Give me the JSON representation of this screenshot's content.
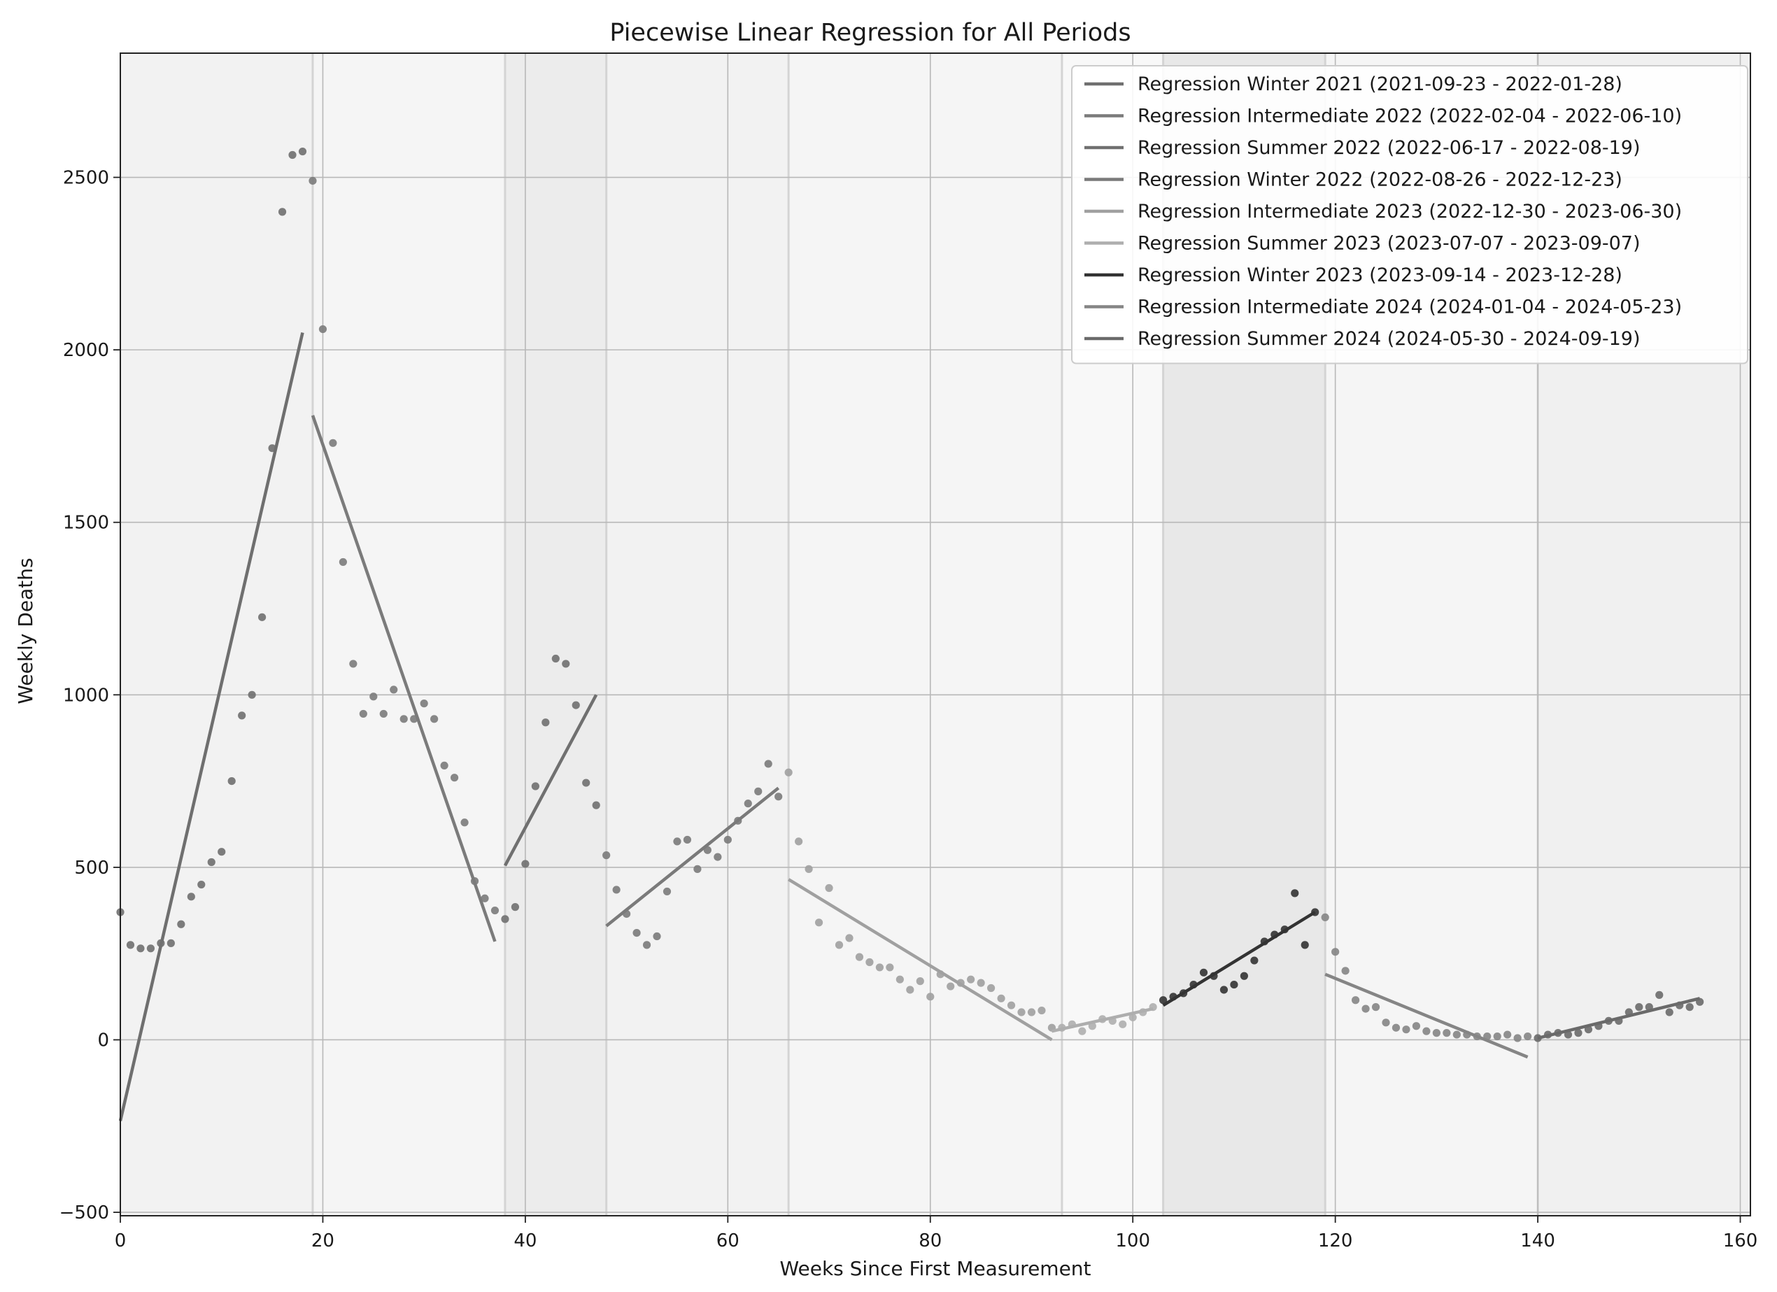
{
  "chart_data": {
    "type": "scatter",
    "title": "Piecewise Linear Regression for All Periods",
    "xlabel": "Weeks Since First Measurement",
    "ylabel": "Weekly Deaths",
    "xlim": [
      0,
      161
    ],
    "ylim": [
      -510,
      2860
    ],
    "x_ticks": [
      0,
      20,
      40,
      60,
      80,
      100,
      120,
      140,
      160
    ],
    "y_ticks": [
      -500,
      0,
      500,
      1000,
      1500,
      2000,
      2500
    ],
    "grid": true,
    "legend_position": "top-right",
    "series": [
      {
        "name": "Regression Winter 2021 (2021-09-23 - 2022-01-28)",
        "color": "#6f6f6f",
        "background": "#f2f2f2",
        "x_range": [
          0,
          19
        ],
        "points": [
          [
            0,
            370
          ],
          [
            1,
            275
          ],
          [
            2,
            265
          ],
          [
            3,
            265
          ],
          [
            4,
            280
          ],
          [
            5,
            280
          ],
          [
            6,
            335
          ],
          [
            7,
            415
          ],
          [
            8,
            450
          ],
          [
            9,
            515
          ],
          [
            10,
            545
          ],
          [
            11,
            750
          ],
          [
            12,
            940
          ],
          [
            13,
            1000
          ],
          [
            14,
            1225
          ],
          [
            15,
            1715
          ],
          [
            16,
            2400
          ],
          [
            17,
            2565
          ],
          [
            18,
            2575
          ]
        ],
        "regression": [
          [
            0,
            -235
          ],
          [
            18,
            2050
          ]
        ]
      },
      {
        "name": "Regression Intermediate 2022 (2022-02-04 - 2022-06-10)",
        "color": "#7b7b7b",
        "background": "#f5f5f5",
        "x_range": [
          19,
          38
        ],
        "points": [
          [
            19,
            2490
          ],
          [
            20,
            2060
          ],
          [
            21,
            1730
          ],
          [
            22,
            1385
          ],
          [
            23,
            1090
          ],
          [
            24,
            945
          ],
          [
            25,
            995
          ],
          [
            26,
            945
          ],
          [
            27,
            1015
          ],
          [
            28,
            930
          ],
          [
            29,
            930
          ],
          [
            30,
            975
          ],
          [
            31,
            930
          ],
          [
            32,
            795
          ],
          [
            33,
            760
          ],
          [
            34,
            630
          ],
          [
            35,
            460
          ],
          [
            36,
            410
          ],
          [
            37,
            375
          ]
        ],
        "regression": [
          [
            19,
            1810
          ],
          [
            37,
            285
          ]
        ]
      },
      {
        "name": "Regression Summer 2022 (2022-06-17 - 2022-08-19)",
        "color": "#707070",
        "background": "#ececec",
        "x_range": [
          38,
          48
        ],
        "points": [
          [
            38,
            350
          ],
          [
            39,
            385
          ],
          [
            40,
            510
          ],
          [
            41,
            735
          ],
          [
            42,
            920
          ],
          [
            43,
            1105
          ],
          [
            44,
            1090
          ],
          [
            45,
            970
          ],
          [
            46,
            745
          ],
          [
            47,
            680
          ]
        ],
        "regression": [
          [
            38,
            505
          ],
          [
            47,
            1000
          ]
        ]
      },
      {
        "name": "Regression Winter 2022 (2022-08-26 - 2022-12-23)",
        "color": "#7a7a7a",
        "background": "#f2f2f2",
        "x_range": [
          48,
          66
        ],
        "points": [
          [
            48,
            535
          ],
          [
            49,
            435
          ],
          [
            50,
            365
          ],
          [
            51,
            310
          ],
          [
            52,
            275
          ],
          [
            53,
            300
          ],
          [
            54,
            430
          ],
          [
            55,
            575
          ],
          [
            56,
            580
          ],
          [
            57,
            495
          ],
          [
            58,
            550
          ],
          [
            59,
            530
          ],
          [
            60,
            580
          ],
          [
            61,
            635
          ],
          [
            62,
            685
          ],
          [
            63,
            720
          ],
          [
            64,
            800
          ],
          [
            65,
            705
          ]
        ],
        "regression": [
          [
            48,
            330
          ],
          [
            65,
            730
          ]
        ]
      },
      {
        "name": "Regression Intermediate 2023 (2022-12-30 - 2023-06-30)",
        "color": "#a0a0a0",
        "background": "#f5f5f5",
        "x_range": [
          66,
          93
        ],
        "points": [
          [
            66,
            775
          ],
          [
            67,
            575
          ],
          [
            68,
            495
          ],
          [
            69,
            340
          ],
          [
            70,
            440
          ],
          [
            71,
            275
          ],
          [
            72,
            295
          ],
          [
            73,
            240
          ],
          [
            74,
            225
          ],
          [
            75,
            210
          ],
          [
            76,
            210
          ],
          [
            77,
            175
          ],
          [
            78,
            145
          ],
          [
            79,
            170
          ],
          [
            80,
            125
          ],
          [
            81,
            190
          ],
          [
            82,
            155
          ],
          [
            83,
            165
          ],
          [
            84,
            175
          ],
          [
            85,
            165
          ],
          [
            86,
            150
          ],
          [
            87,
            120
          ],
          [
            88,
            100
          ],
          [
            89,
            80
          ],
          [
            90,
            80
          ],
          [
            91,
            85
          ],
          [
            92,
            35
          ]
        ],
        "regression": [
          [
            66,
            465
          ],
          [
            92,
            0
          ]
        ]
      },
      {
        "name": "Regression Summer 2023 (2023-07-07 - 2023-09-07)",
        "color": "#aeaeae",
        "background": "#f8f8f8",
        "x_range": [
          93,
          103
        ],
        "points": [
          [
            93,
            35
          ],
          [
            94,
            45
          ],
          [
            95,
            25
          ],
          [
            96,
            40
          ],
          [
            97,
            60
          ],
          [
            98,
            55
          ],
          [
            99,
            45
          ],
          [
            100,
            65
          ],
          [
            101,
            80
          ],
          [
            102,
            95
          ]
        ],
        "regression": [
          [
            92,
            25
          ],
          [
            102,
            90
          ]
        ]
      },
      {
        "name": "Regression Winter 2023 (2023-09-14 - 2023-12-28)",
        "color": "#333333",
        "background": "#e8e8e8",
        "x_range": [
          103,
          119
        ],
        "points": [
          [
            103,
            115
          ],
          [
            104,
            125
          ],
          [
            105,
            135
          ],
          [
            106,
            160
          ],
          [
            107,
            195
          ],
          [
            108,
            185
          ],
          [
            109,
            145
          ],
          [
            110,
            160
          ],
          [
            111,
            185
          ],
          [
            112,
            230
          ],
          [
            113,
            285
          ],
          [
            114,
            305
          ],
          [
            115,
            320
          ],
          [
            116,
            425
          ],
          [
            117,
            275
          ],
          [
            118,
            370
          ]
        ],
        "regression": [
          [
            103,
            100
          ],
          [
            118,
            370
          ]
        ]
      },
      {
        "name": "Regression Intermediate 2024 (2024-01-04 - 2024-05-23)",
        "color": "#858585",
        "background": "#f5f5f5",
        "x_range": [
          119,
          140
        ],
        "points": [
          [
            119,
            355
          ],
          [
            120,
            255
          ],
          [
            121,
            200
          ],
          [
            122,
            115
          ],
          [
            123,
            90
          ],
          [
            124,
            95
          ],
          [
            125,
            50
          ],
          [
            126,
            35
          ],
          [
            127,
            30
          ],
          [
            128,
            40
          ],
          [
            129,
            25
          ],
          [
            130,
            20
          ],
          [
            131,
            20
          ],
          [
            132,
            15
          ],
          [
            133,
            15
          ],
          [
            134,
            10
          ],
          [
            135,
            10
          ],
          [
            136,
            10
          ],
          [
            137,
            15
          ],
          [
            138,
            5
          ],
          [
            139,
            10
          ]
        ],
        "regression": [
          [
            119,
            190
          ],
          [
            139,
            -50
          ]
        ]
      },
      {
        "name": "Regression Summer 2024 (2024-05-30 - 2024-09-19)",
        "color": "#6a6a6a",
        "background": "#f0f0f0",
        "x_range": [
          140,
          161
        ],
        "points": [
          [
            140,
            5
          ],
          [
            141,
            15
          ],
          [
            142,
            20
          ],
          [
            143,
            15
          ],
          [
            144,
            20
          ],
          [
            145,
            30
          ],
          [
            146,
            40
          ],
          [
            147,
            55
          ],
          [
            148,
            55
          ],
          [
            149,
            80
          ],
          [
            150,
            95
          ],
          [
            151,
            95
          ],
          [
            152,
            130
          ],
          [
            153,
            80
          ],
          [
            154,
            100
          ],
          [
            155,
            95
          ],
          [
            156,
            110
          ]
        ],
        "regression": [
          [
            140,
            5
          ],
          [
            156,
            120
          ]
        ]
      }
    ]
  }
}
